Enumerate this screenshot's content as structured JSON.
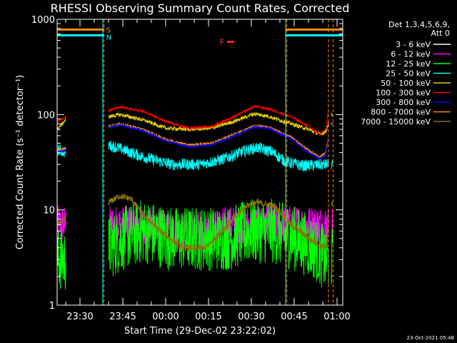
{
  "chart_data": {
    "type": "line",
    "title": "RHESSI Observing Summary Count Rates, Corrected",
    "xlabel": "Start Time (29-Dec-02 23:22:02)",
    "ylabel": "Corrected Count Rate (s⁻¹ detector⁻¹)",
    "yscale": "log",
    "ylim": [
      1,
      1000
    ],
    "xlim_min": [
      0,
      100
    ],
    "x_ticks": [
      {
        "min": 8,
        "label": "23:30"
      },
      {
        "min": 23,
        "label": "23:45"
      },
      {
        "min": 38,
        "label": "00:00"
      },
      {
        "min": 53,
        "label": "00:15"
      },
      {
        "min": 68,
        "label": "00:30"
      },
      {
        "min": 83,
        "label": "00:45"
      },
      {
        "min": 98,
        "label": "01:00"
      }
    ],
    "y_ticks": [
      {
        "value": 1,
        "label": "1"
      },
      {
        "value": 10,
        "label": "10"
      },
      {
        "value": 100,
        "label": "100"
      },
      {
        "value": 1000,
        "label": "1000"
      }
    ],
    "legend_header": [
      "Det 1,3,4,5,6,9,",
      "Att 0"
    ],
    "flags": [
      {
        "label": "S",
        "color": "#ff8c00",
        "value": 780
      },
      {
        "label": "N",
        "color": "#00ffff",
        "value": 680
      },
      {
        "label": "F",
        "color": "#ff2020",
        "value": 580
      }
    ],
    "night_markers_min": [
      16,
      80
    ],
    "saa_markers_min": [
      16.4,
      80.4,
      95,
      96.6
    ],
    "data_segments_min": [
      [
        0,
        3
      ],
      [
        18,
        95
      ],
      [
        96,
        96.5
      ]
    ],
    "series": [
      {
        "name": "3 - 6 keV",
        "color": "#ffffff"
      },
      {
        "name": "6 - 12 keV",
        "color": "#ff00ff"
      },
      {
        "name": "12 - 25 keV",
        "color": "#00ff00"
      },
      {
        "name": "25 - 50 keV",
        "color": "#00ffff"
      },
      {
        "name": "50 - 100 keV",
        "color": "#e8d000"
      },
      {
        "name": "100 - 300 keV",
        "color": "#ff0000"
      },
      {
        "name": "300 - 800 keV",
        "color": "#0000ff"
      },
      {
        "name": "800 - 7000 keV",
        "color": "#ff8c00"
      },
      {
        "name": "7000 - 15000 keV",
        "color": "#8b7500"
      }
    ],
    "curves": [
      {
        "series": 1,
        "noise": 1.6,
        "points": [
          [
            0,
            7
          ],
          [
            3,
            7
          ],
          [
            18,
            7
          ],
          [
            23,
            7
          ],
          [
            30,
            7
          ],
          [
            40,
            6
          ],
          [
            53,
            6
          ],
          [
            60,
            7
          ],
          [
            68,
            7
          ],
          [
            75,
            7
          ],
          [
            83,
            7
          ],
          [
            90,
            7
          ],
          [
            94,
            7
          ]
        ]
      },
      {
        "series": 2,
        "noise": 2.2,
        "points": [
          [
            0,
            3
          ],
          [
            3,
            3
          ],
          [
            18,
            4
          ],
          [
            23,
            5
          ],
          [
            30,
            6
          ],
          [
            40,
            5
          ],
          [
            50,
            5
          ],
          [
            60,
            5
          ],
          [
            68,
            6
          ],
          [
            75,
            6
          ],
          [
            83,
            5
          ],
          [
            90,
            4
          ],
          [
            94,
            3
          ]
        ]
      },
      {
        "series": 3,
        "noise": 1.15,
        "points": [
          [
            0,
            43
          ],
          [
            3,
            40
          ],
          [
            18,
            48
          ],
          [
            22,
            44
          ],
          [
            30,
            36
          ],
          [
            40,
            30
          ],
          [
            50,
            30
          ],
          [
            58,
            34
          ],
          [
            66,
            42
          ],
          [
            70,
            45
          ],
          [
            75,
            41
          ],
          [
            80,
            32
          ],
          [
            86,
            29
          ],
          [
            94,
            30
          ]
        ]
      },
      {
        "series": 8,
        "noise": 1.08,
        "points": [
          [
            0,
            7
          ],
          [
            3,
            8
          ],
          [
            18,
            12
          ],
          [
            22,
            14
          ],
          [
            26,
            13
          ],
          [
            30,
            9
          ],
          [
            36,
            6
          ],
          [
            44,
            4
          ],
          [
            52,
            4
          ],
          [
            60,
            7
          ],
          [
            66,
            11
          ],
          [
            70,
            12
          ],
          [
            76,
            11
          ],
          [
            82,
            7
          ],
          [
            88,
            5
          ],
          [
            94,
            4
          ],
          [
            96,
            12
          ]
        ]
      },
      {
        "series": 4,
        "noise": 1.05,
        "points": [
          [
            0,
            70
          ],
          [
            3,
            88
          ],
          [
            18,
            95
          ],
          [
            22,
            100
          ],
          [
            30,
            88
          ],
          [
            38,
            72
          ],
          [
            46,
            70
          ],
          [
            54,
            72
          ],
          [
            62,
            85
          ],
          [
            69,
            102
          ],
          [
            74,
            96
          ],
          [
            82,
            80
          ],
          [
            88,
            70
          ],
          [
            92,
            62
          ],
          [
            94,
            66
          ],
          [
            96,
            100
          ]
        ]
      },
      {
        "series": 7,
        "noise": 1.03,
        "points": [
          [
            0,
            42
          ],
          [
            3,
            44
          ],
          [
            18,
            75
          ],
          [
            22,
            80
          ],
          [
            30,
            70
          ],
          [
            38,
            55
          ],
          [
            46,
            48
          ],
          [
            54,
            50
          ],
          [
            62,
            62
          ],
          [
            69,
            76
          ],
          [
            74,
            74
          ],
          [
            82,
            58
          ],
          [
            88,
            42
          ],
          [
            92,
            36
          ],
          [
            94,
            40
          ],
          [
            96,
            80
          ]
        ]
      },
      {
        "series": 6,
        "noise": 1.03,
        "points": [
          [
            0,
            40
          ],
          [
            3,
            42
          ],
          [
            18,
            73
          ],
          [
            22,
            78
          ],
          [
            30,
            68
          ],
          [
            38,
            53
          ],
          [
            46,
            46
          ],
          [
            54,
            48
          ],
          [
            62,
            60
          ],
          [
            69,
            74
          ],
          [
            74,
            72
          ],
          [
            82,
            56
          ],
          [
            88,
            40
          ],
          [
            92,
            34
          ],
          [
            94,
            38
          ],
          [
            96,
            78
          ]
        ]
      },
      {
        "series": 5,
        "noise": 1.03,
        "points": [
          [
            0,
            85
          ],
          [
            3,
            95
          ],
          [
            18,
            110
          ],
          [
            22,
            120
          ],
          [
            30,
            108
          ],
          [
            38,
            85
          ],
          [
            46,
            72
          ],
          [
            54,
            75
          ],
          [
            62,
            95
          ],
          [
            69,
            122
          ],
          [
            74,
            115
          ],
          [
            82,
            95
          ],
          [
            88,
            75
          ],
          [
            92,
            62
          ],
          [
            94,
            70
          ],
          [
            96,
            180
          ]
        ]
      }
    ]
  },
  "footer_timestamp": "23-Oct-2021 05:48"
}
